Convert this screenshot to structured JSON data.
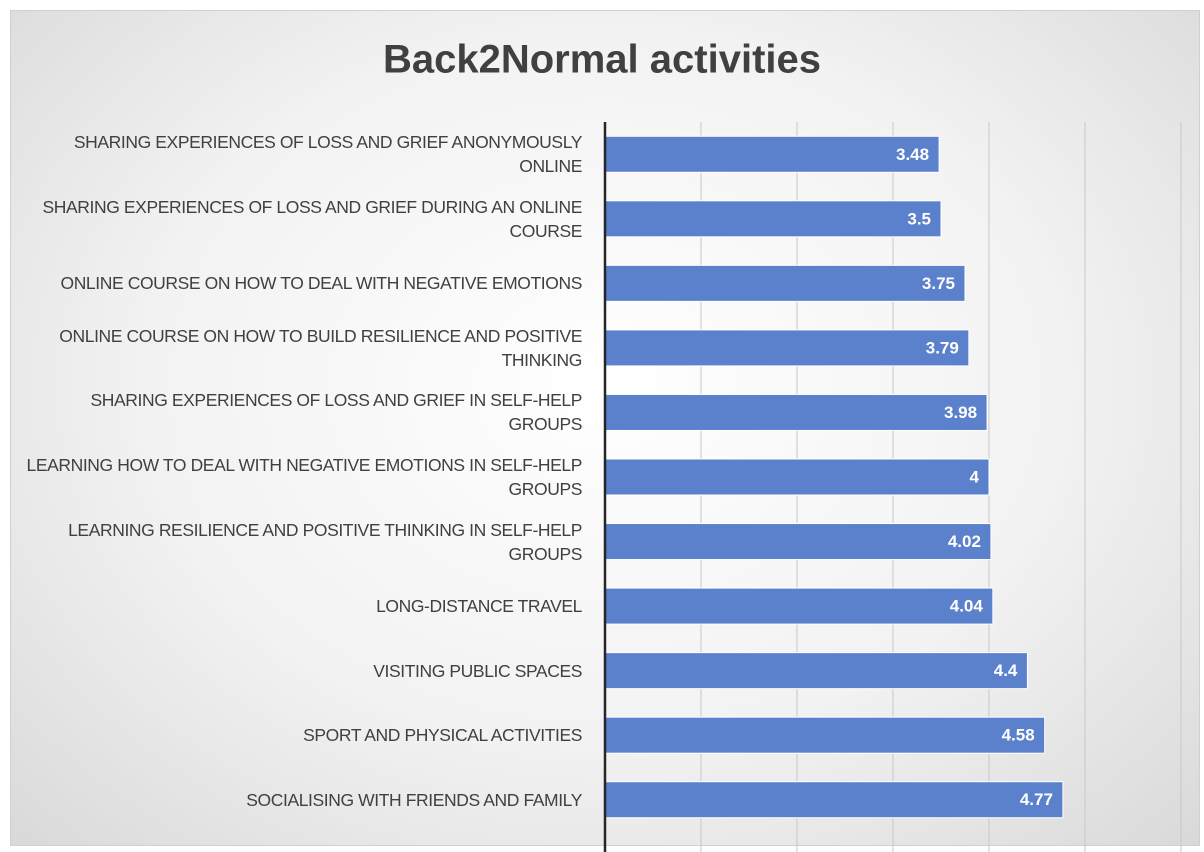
{
  "chart_data": {
    "type": "barh",
    "title": "Back2Normal activities",
    "categories": [
      "SHARING EXPERIENCES OF LOSS AND GRIEF ANONYMOUSLY ONLINE",
      "SHARING EXPERIENCES OF LOSS AND GRIEF DURING AN ONLINE COURSE",
      "ONLINE COURSE ON HOW TO DEAL WITH NEGATIVE EMOTIONS",
      "ONLINE COURSE ON HOW TO BUILD RESILIENCE AND POSITIVE THINKING",
      "SHARING EXPERIENCES OF LOSS AND GRIEF IN SELF-HELP GROUPS",
      "LEARNING HOW TO DEAL WITH NEGATIVE EMOTIONS IN SELF-HELP GROUPS",
      "LEARNING RESILIENCE AND POSITIVE THINKING IN SELF-HELP GROUPS",
      "LONG-DISTANCE TRAVEL",
      "VISITING PUBLIC SPACES",
      "SPORT AND PHYSICAL ACTIVITIES",
      "SOCIALISING WITH FRIENDS AND FAMILY"
    ],
    "values": [
      3.48,
      3.5,
      3.75,
      3.79,
      3.98,
      4,
      4.02,
      4.04,
      4.4,
      4.58,
      4.77
    ],
    "color": "#5b80cc",
    "xlim": [
      0,
      6
    ],
    "xticks": [
      0,
      1,
      2,
      3,
      4,
      5,
      6
    ],
    "grid": true
  }
}
